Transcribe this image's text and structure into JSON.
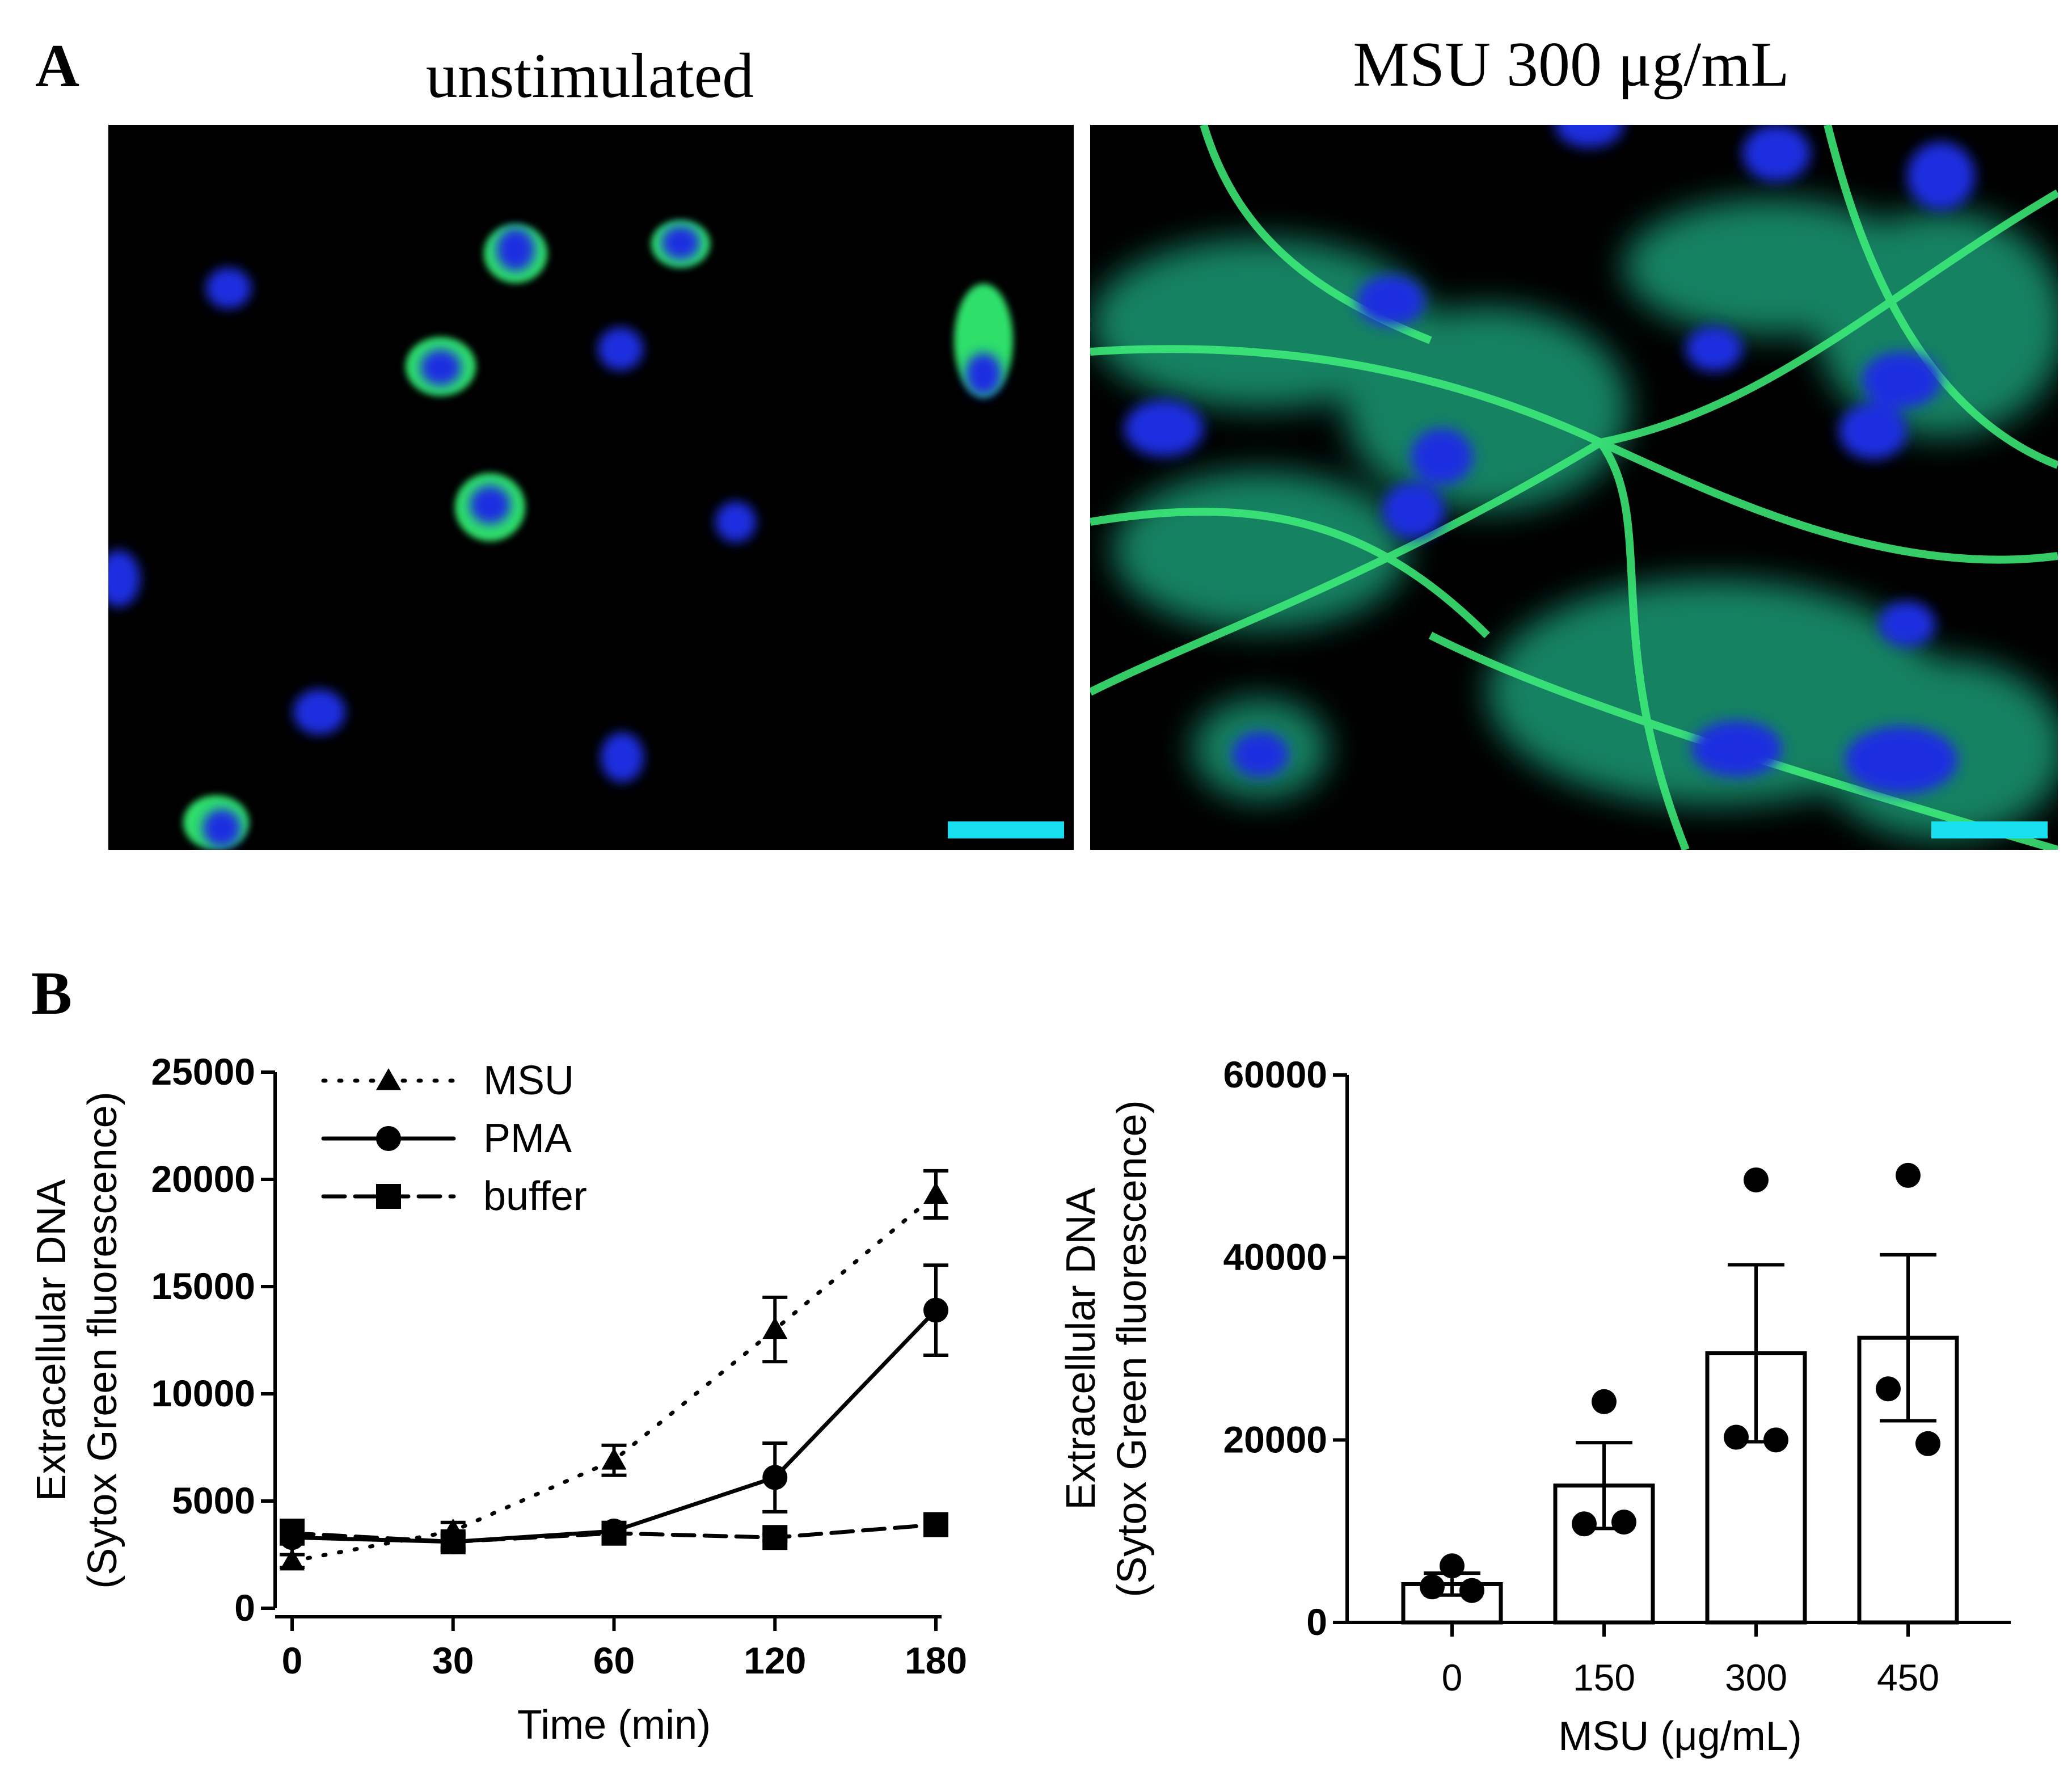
{
  "panel_a": {
    "letter": "A",
    "left_title": "unstimulated",
    "right_title": "MSU 300 μg/mL"
  },
  "panel_b": {
    "letter": "B"
  },
  "colors": {
    "nucleus": "#1a2fe0",
    "dna_stain": "#2ee06a",
    "scale_bar": "#19e0f0"
  },
  "chart_data": [
    {
      "type": "line",
      "xlabel": "Time (min)",
      "ylabel_line1": "Extracellular DNA",
      "ylabel_line2": "(Sytox Green fluorescence)",
      "x": [
        0,
        30,
        60,
        120,
        180
      ],
      "x_ticks": [
        0,
        30,
        60,
        120,
        180
      ],
      "x_tick_labels": [
        "0",
        "30",
        "60",
        "120",
        "180"
      ],
      "ylim": [
        0,
        25000
      ],
      "y_ticks": [
        0,
        5000,
        10000,
        15000,
        20000,
        25000
      ],
      "y_tick_labels": [
        "0",
        "5000",
        "10000",
        "15000",
        "20000",
        "25000"
      ],
      "legend_position": "top-left",
      "grid": false,
      "series": [
        {
          "name": "MSU",
          "marker": "triangle",
          "line_style": "dotted",
          "values": [
            2200,
            3600,
            6900,
            13000,
            19300
          ],
          "errors": [
            300,
            400,
            700,
            1500,
            1100
          ]
        },
        {
          "name": "PMA",
          "marker": "circle",
          "line_style": "solid",
          "values": [
            3300,
            3100,
            3600,
            6100,
            13900
          ],
          "errors": [
            800,
            400,
            300,
            1600,
            2100
          ]
        },
        {
          "name": "buffer",
          "marker": "square",
          "line_style": "dashed",
          "values": [
            3500,
            3100,
            3500,
            3300,
            3900
          ],
          "errors": [
            400,
            300,
            200,
            150,
            200
          ]
        }
      ]
    },
    {
      "type": "bar",
      "xlabel": "MSU (μg/mL)",
      "ylabel_line1": "Extracellular DNA",
      "ylabel_line2": "(Sytox Green fluorescence)",
      "categories": [
        "0",
        "150",
        "300",
        "450"
      ],
      "values": [
        4200,
        15000,
        29500,
        31200
      ],
      "errors": [
        1200,
        4700,
        9700,
        9100
      ],
      "points": [
        [
          6200,
          3900,
          3500
        ],
        [
          24200,
          10800,
          11000
        ],
        [
          48500,
          20300,
          20000
        ],
        [
          49000,
          25600,
          19600
        ]
      ],
      "ylim": [
        0,
        60000
      ],
      "y_ticks": [
        0,
        20000,
        40000,
        60000
      ],
      "y_tick_labels": [
        "0",
        "20000",
        "40000",
        "60000"
      ],
      "grid": false
    }
  ]
}
